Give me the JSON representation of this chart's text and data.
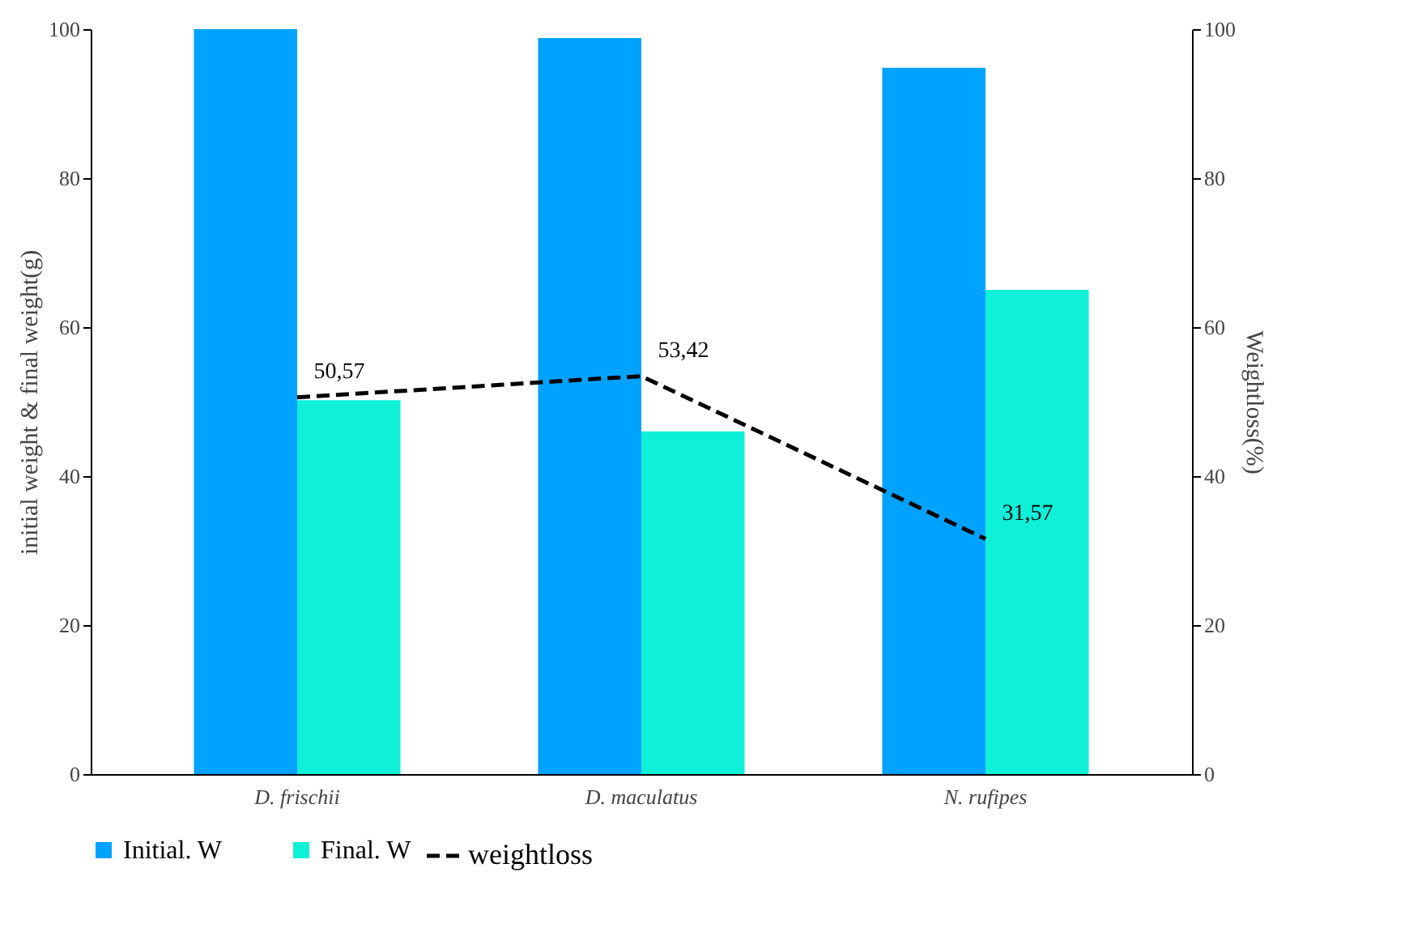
{
  "chart_data": {
    "type": "bar",
    "categories": [
      "D. frischii",
      "D. maculatus",
      "N. rufipes"
    ],
    "ylabel": "initial weight & final weight(g)",
    "y2label": "Weightloss(%)",
    "ylim": [
      0,
      100
    ],
    "yticks": [
      0,
      20,
      40,
      60,
      80,
      100
    ],
    "y2lim": [
      0,
      100
    ],
    "y2ticks": [
      0,
      20,
      40,
      60,
      80,
      100
    ],
    "series": [
      {
        "name": "Initial. W",
        "color": "#00a2ff",
        "values": [
          100,
          98.8,
          94.8
        ]
      },
      {
        "name": "Final. W",
        "color": "#0ff0d8",
        "values": [
          50.2,
          46,
          65
        ]
      },
      {
        "name": "weightloss",
        "type": "line",
        "axis": "y2",
        "color": "#000000",
        "line_style": "dashed",
        "marker": "none",
        "values": [
          50.57,
          53.42,
          31.57
        ],
        "value_labels": [
          "50,57",
          "53,42",
          "31,57"
        ]
      }
    ],
    "legend": "bottom",
    "grid": false
  }
}
